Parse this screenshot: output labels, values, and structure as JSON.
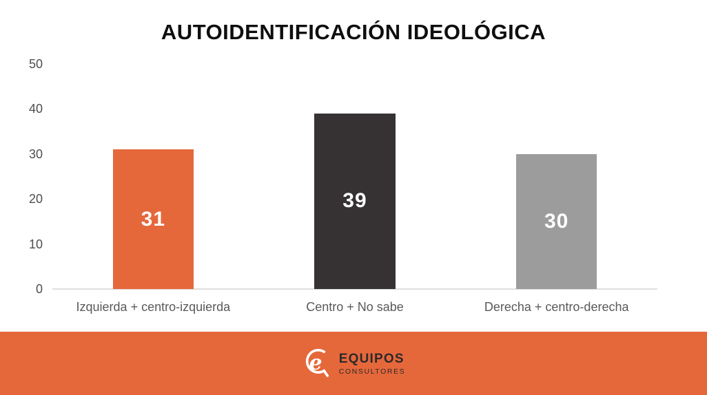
{
  "chart_data": {
    "type": "bar",
    "title": "AUTOIDENTIFICACIÓN IDEOLÓGICA",
    "categories": [
      "Izquierda + centro-izquierda",
      "Centro + No sabe",
      "Derecha + centro-derecha"
    ],
    "values": [
      31,
      39,
      30
    ],
    "bar_colors": [
      "#e5683b",
      "#363233",
      "#9c9c9c"
    ],
    "value_label_color": "#ffffff",
    "ylim": [
      0,
      50
    ],
    "yticks": [
      50,
      40,
      30,
      20,
      10,
      0
    ],
    "xlabel": "",
    "ylabel": "",
    "grid": false,
    "legend": false
  },
  "footer": {
    "logo_icon": "equipos-e-mark",
    "brand_name": "EQUIPOS",
    "brand_tagline": "CONSULTORES",
    "background_color": "#e5683b",
    "text_color": "#2d292a"
  },
  "colors": {
    "accent_orange": "#e5683b",
    "bar_dark": "#363233",
    "bar_gray": "#9c9c9c",
    "title_text": "#0e0e0e",
    "y_axis_label": "#4e4e4e",
    "category_label": "#595959",
    "baseline": "#dedede",
    "background": "#ffffff"
  }
}
